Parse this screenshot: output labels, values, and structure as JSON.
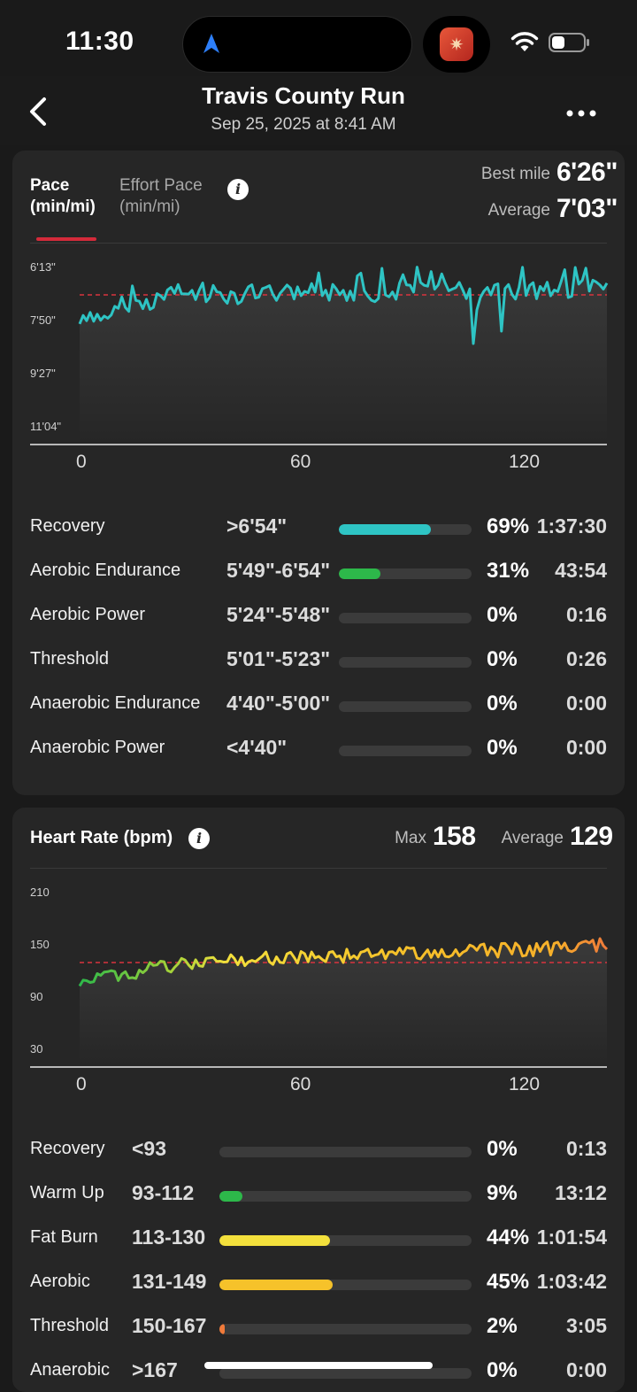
{
  "status": {
    "time": "11:30"
  },
  "header": {
    "title": "Travis County Run",
    "subtitle": "Sep 25, 2025 at 8:41 AM"
  },
  "pace": {
    "tab_active_line1": "Pace",
    "tab_active_line2": "(min/mi)",
    "tab_inactive_line1": "Effort Pace",
    "tab_inactive_line2": "(min/mi)",
    "best_label": "Best mile",
    "best_value": "6'26\"",
    "avg_label": "Average",
    "avg_value": "7'03\"",
    "y_ticks": [
      "6'13\"",
      "7'50\"",
      "9'27\"",
      "11'04\""
    ],
    "x_ticks": [
      "0",
      "60",
      "120"
    ],
    "zones": [
      {
        "name": "Recovery",
        "range": ">6'54\"",
        "pct": "69%",
        "fraction": 0.69,
        "time": "1:37:30",
        "color": "#2ec4c4"
      },
      {
        "name": "Aerobic Endurance",
        "range": "5'49\"-6'54\"",
        "pct": "31%",
        "fraction": 0.31,
        "time": "43:54",
        "color": "#2db84a"
      },
      {
        "name": "Aerobic Power",
        "range": "5'24\"-5'48\"",
        "pct": "0%",
        "fraction": 0,
        "time": "0:16",
        "color": "#e0c12a"
      },
      {
        "name": "Threshold",
        "range": "5'01\"-5'23\"",
        "pct": "0%",
        "fraction": 0,
        "time": "0:26",
        "color": "#f0a020"
      },
      {
        "name": "Anaerobic Endurance",
        "range": "4'40\"-5'00\"",
        "pct": "0%",
        "fraction": 0,
        "time": "0:00",
        "color": "#f06020"
      },
      {
        "name": "Anaerobic Power",
        "range": "<4'40\"",
        "pct": "0%",
        "fraction": 0,
        "time": "0:00",
        "color": "#e02a3a"
      }
    ]
  },
  "hr": {
    "title": "Heart Rate (bpm)",
    "max_label": "Max",
    "max_value": "158",
    "avg_label": "Average",
    "avg_value": "129",
    "y_ticks": [
      "210",
      "150",
      "90",
      "30"
    ],
    "x_ticks": [
      "0",
      "60",
      "120"
    ],
    "zones": [
      {
        "name": "Recovery",
        "range": "<93",
        "pct": "0%",
        "fraction": 0,
        "time": "0:13",
        "color": "#3a8ad6"
      },
      {
        "name": "Warm Up",
        "range": "93-112",
        "pct": "9%",
        "fraction": 0.09,
        "time": "13:12",
        "color": "#2db84a"
      },
      {
        "name": "Fat Burn",
        "range": "113-130",
        "pct": "44%",
        "fraction": 0.44,
        "time": "1:01:54",
        "color": "#f3e03c"
      },
      {
        "name": "Aerobic",
        "range": "131-149",
        "pct": "45%",
        "fraction": 0.45,
        "time": "1:03:42",
        "color": "#f6c22a"
      },
      {
        "name": "Threshold",
        "range": "150-167",
        "pct": "2%",
        "fraction": 0.02,
        "time": "3:05",
        "color": "#f07a3a"
      },
      {
        "name": "Anaerobic",
        "range": ">167",
        "pct": "0%",
        "fraction": 0,
        "time": "0:00",
        "color": "#e02a3a"
      }
    ]
  },
  "icons": [
    "back-chevron-icon",
    "more-dots-icon",
    "info-icon",
    "navigation-arrow-icon",
    "wifi-icon",
    "battery-icon",
    "app-icon"
  ]
}
